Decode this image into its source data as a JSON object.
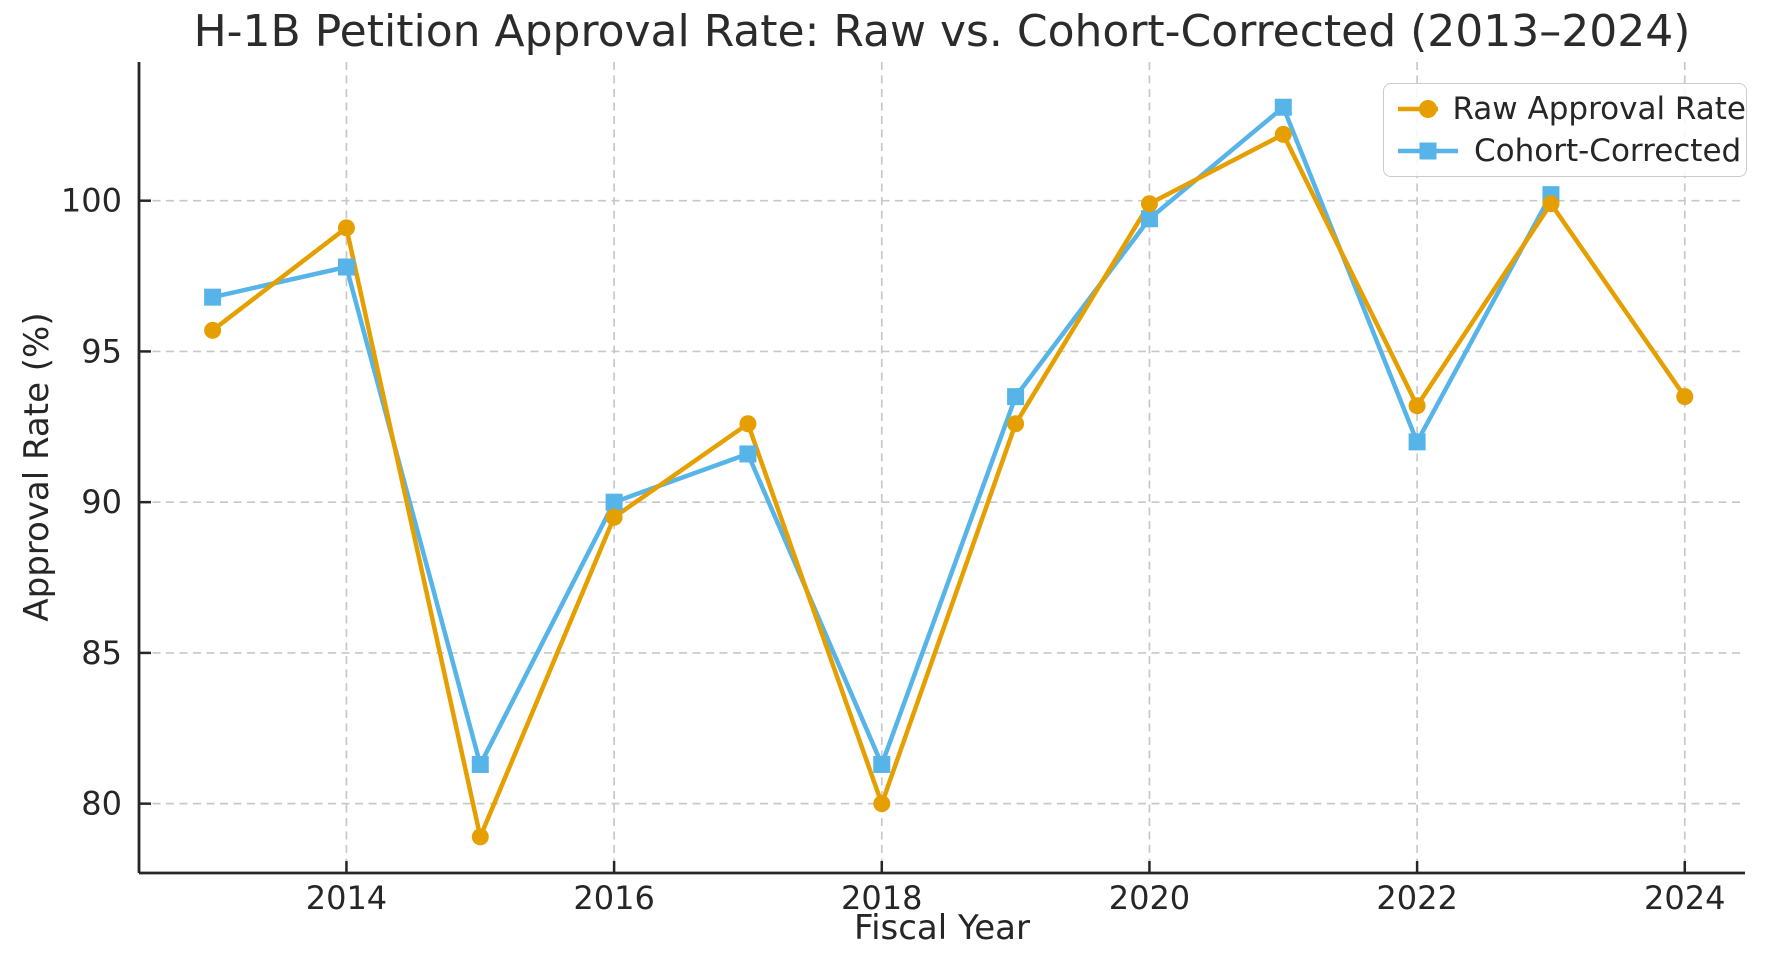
{
  "page": {
    "background_color": "#ffffff",
    "text_color": "#262626",
    "grid_color": "#c8c8c8",
    "spine_color": "#262626"
  },
  "chart_data": {
    "type": "line",
    "title": "H-1B Petition Approval Rate: Raw vs. Cohort-Corrected (2013–2024)",
    "xlabel": "Fiscal Year",
    "ylabel": "Approval Rate (%)",
    "x": [
      2013,
      2014,
      2015,
      2016,
      2017,
      2018,
      2019,
      2020,
      2021,
      2022,
      2023,
      2024
    ],
    "series": [
      {
        "name": "Raw Approval Rate",
        "color": "#E69F00",
        "marker": "circle",
        "values": [
          95.7,
          99.1,
          78.9,
          89.5,
          92.6,
          80.0,
          92.6,
          99.9,
          102.2,
          93.2,
          99.9,
          93.5
        ]
      },
      {
        "name": "Cohort-Corrected",
        "color": "#56B4E9",
        "marker": "square",
        "values": [
          96.8,
          97.8,
          81.3,
          90.0,
          91.6,
          81.3,
          93.5,
          99.4,
          103.1,
          92.0,
          100.2,
          null
        ]
      }
    ],
    "xticks": [
      2014,
      2016,
      2018,
      2020,
      2022,
      2024
    ],
    "yticks": [
      80,
      85,
      90,
      95,
      100
    ],
    "xlim": [
      2012.45,
      2024.45
    ],
    "ylim": [
      77.7,
      104.6
    ],
    "grid": true,
    "grid_style": "dashed",
    "legend_position": "top-right",
    "ticks_direction": "in"
  }
}
